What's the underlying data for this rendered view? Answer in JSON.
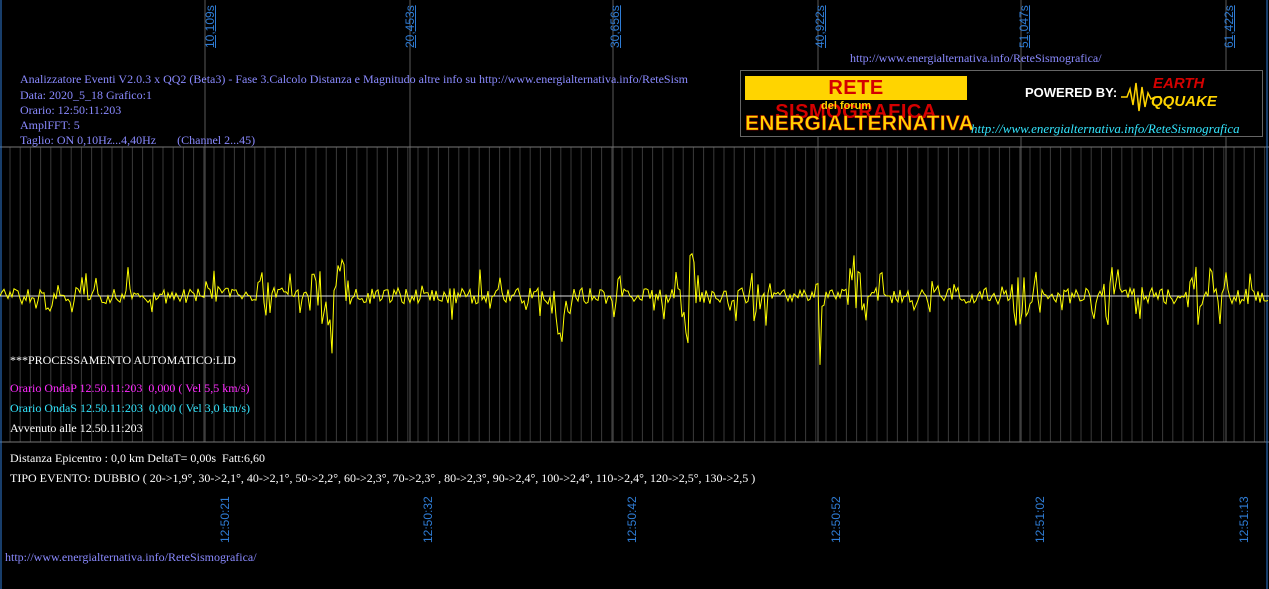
{
  "top_time_labels": [
    "10,109s",
    "20,453s",
    "30,656s",
    "40,922s",
    "51,047s",
    "61,422s"
  ],
  "bottom_time_labels": [
    "12:50:21",
    "12:50:32",
    "12:50:42",
    "12:50:52",
    "12:51:02",
    "12:51:13"
  ],
  "header_url": "http://www.energialternativa.info/ReteSismografica/",
  "info": {
    "line1": "Analizzatore Eventi V2.0.3 x QQ2 (Beta3) - Fase 3.Calcolo Distanza e Magnitudo altre info su http://www.energialternativa.info/ReteSism",
    "line2": "Data: 2020_5_18 Grafico:1",
    "line3": "Orario: 12:50:11:203",
    "line4": "AmplFFT: 5",
    "line5": "Taglio: ON 0,10Hz...4,40Hz       (Channel 2...45)"
  },
  "logo": {
    "title": "RETE SISMOGRAFICA",
    "subtitle": "del forum",
    "brand": "ENERGIALTERNATIVA",
    "powered": "POWERED BY:",
    "earth": "EARTH",
    "qquake": "QQUAKE",
    "url": "http://www.energialternativa.info/ReteSismografica"
  },
  "processing": {
    "title": "***PROCESSAMENTO AUTOMATICO:LID",
    "onda_p": "Orario OndaP 12.50.11:203  0,000 ( Vel 5,5 km/s)",
    "onda_s": "Orario OndaS 12.50.11:203  0,000 ( Vel 3,0 km/s)",
    "avvenuto": "Avvenuto alle 12.50.11:203"
  },
  "event": {
    "distanza": "Distanza Epicentro : 0,0 km DeltaT= 0,00s  Fatt:6,60",
    "tipo": "TIPO EVENTO: DUBBIO ( 20->1,9°, 30->2,1°, 40->2,1°, 50->2,2°, 60->2,3°, 70->2,3° , 80->2,3°, 90->2,4°, 100->2,4°, 110->2,4°, 120->2,5°, 130->2,5 )"
  },
  "footer_url": "http://www.energialternativa.info/ReteSismografica/",
  "colors": {
    "background": "#000000",
    "trace": "#ffff00",
    "grid": "#555555",
    "axis_labels": "#2f7dd6",
    "info_text": "#8a8aff",
    "onda_p": "#ff2bff",
    "onda_s": "#33e6ff"
  }
}
